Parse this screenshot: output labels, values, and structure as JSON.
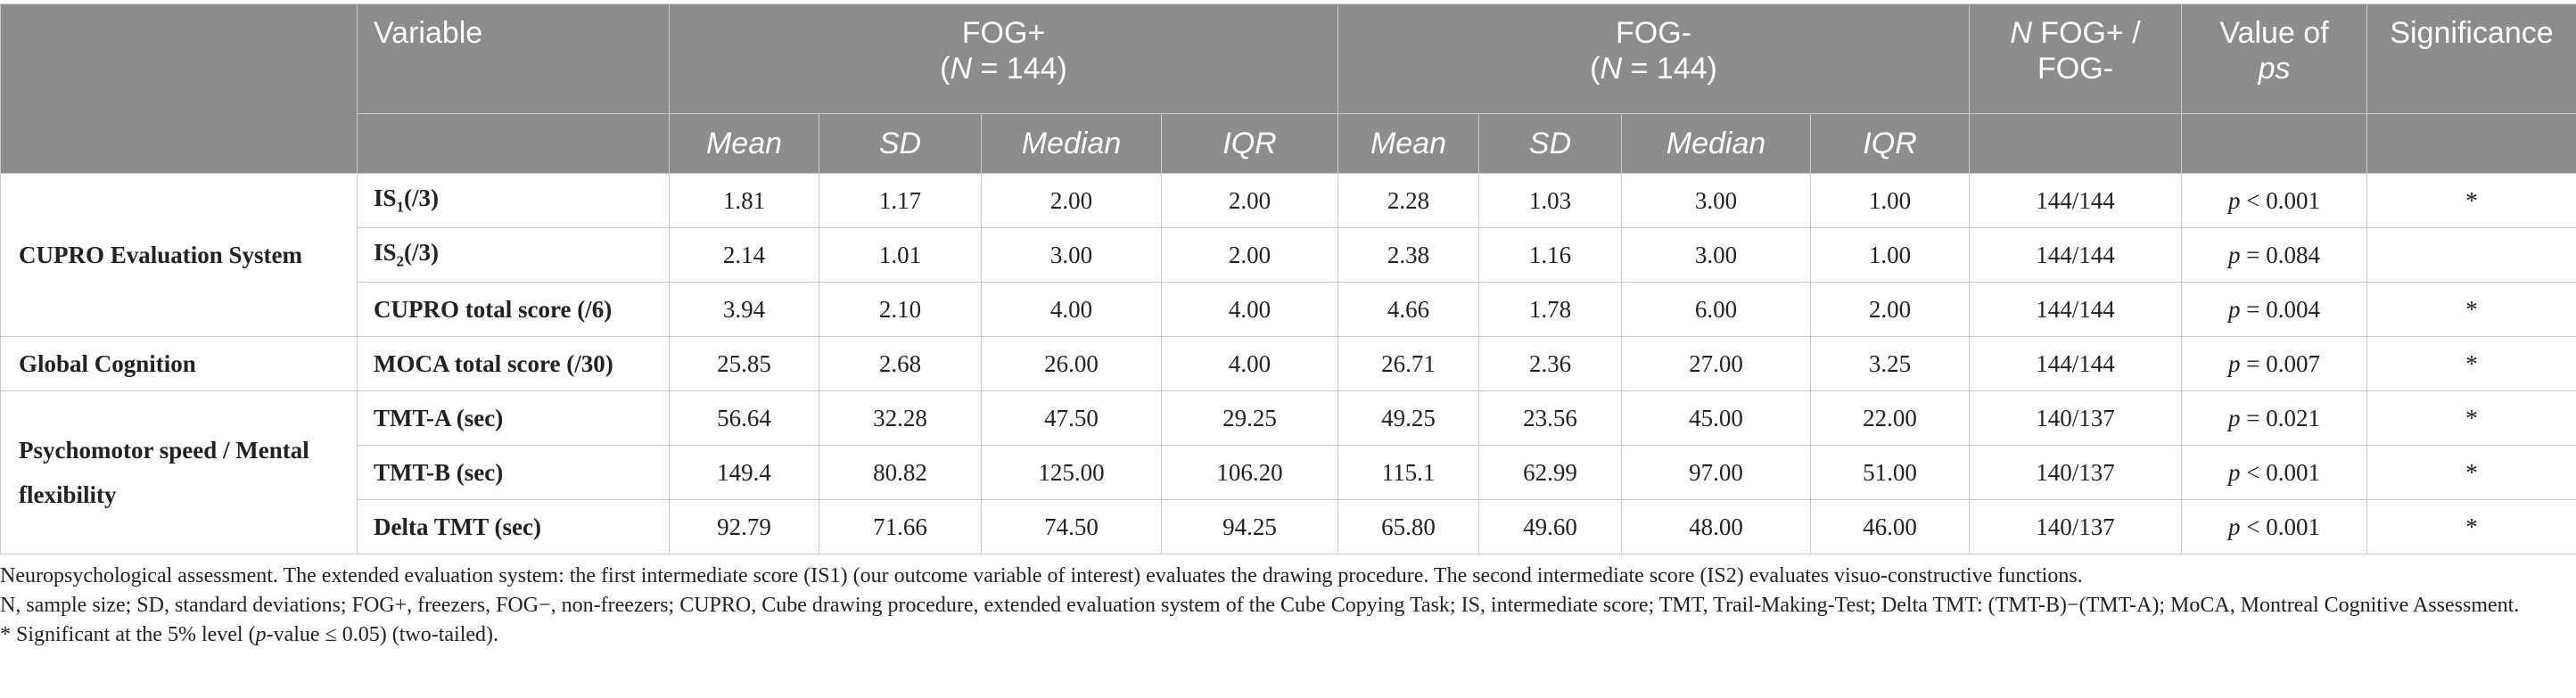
{
  "header": {
    "variable": "Variable",
    "fog_plus": {
      "label": "FOG+",
      "n_prefix": "(",
      "n_label": "N",
      "n_value": " = 144)"
    },
    "fog_minus": {
      "label": "FOG-",
      "n_prefix": "(",
      "n_label": "N",
      "n_value": " = 144)"
    },
    "n_col": {
      "n_label": "N",
      "rest": " FOG+ /",
      "line2": "FOG-"
    },
    "value_col": {
      "line1": "Value of",
      "line2": "ps"
    },
    "significance": "Significance",
    "sub": {
      "mean": "Mean",
      "sd": "SD",
      "median": "Median",
      "iqr": "IQR"
    }
  },
  "groups": {
    "cupro": "CUPRO Evaluation System",
    "global": "Global Cognition",
    "psycho": "Psychomotor speed / Mental flexibility"
  },
  "rows": [
    {
      "var_prefix": "IS",
      "var_sub": "1",
      "var_suffix": "(/3)",
      "v": [
        "1.81",
        "1.17",
        "2.00",
        "2.00",
        "2.28",
        "1.03",
        "3.00",
        "1.00",
        "144/144"
      ],
      "p_label": "p",
      "p_value": " < 0.001",
      "sig": "*"
    },
    {
      "var_prefix": "IS",
      "var_sub": "2",
      "var_suffix": "(/3)",
      "v": [
        "2.14",
        "1.01",
        "3.00",
        "2.00",
        "2.38",
        "1.16",
        "3.00",
        "1.00",
        "144/144"
      ],
      "p_label": "p",
      "p_value": " = 0.084",
      "sig": ""
    },
    {
      "var": "CUPRO total score (/6)",
      "v": [
        "3.94",
        "2.10",
        "4.00",
        "4.00",
        "4.66",
        "1.78",
        "6.00",
        "2.00",
        "144/144"
      ],
      "p_label": "p",
      "p_value": " = 0.004",
      "sig": "*"
    },
    {
      "var": "MOCA total score (/30)",
      "v": [
        "25.85",
        "2.68",
        "26.00",
        "4.00",
        "26.71",
        "2.36",
        "27.00",
        "3.25",
        "144/144"
      ],
      "p_label": "p",
      "p_value": " = 0.007",
      "sig": "*"
    },
    {
      "var": "TMT-A (sec)",
      "v": [
        "56.64",
        "32.28",
        "47.50",
        "29.25",
        "49.25",
        "23.56",
        "45.00",
        "22.00",
        "140/137"
      ],
      "p_label": "p",
      "p_value": " = 0.021",
      "sig": "*"
    },
    {
      "var": "TMT-B (sec)",
      "v": [
        "149.4",
        "80.82",
        "125.00",
        "106.20",
        "115.1",
        "62.99",
        "97.00",
        "51.00",
        "140/137"
      ],
      "p_label": "p",
      "p_value": " < 0.001",
      "sig": "*"
    },
    {
      "var": "Delta TMT (sec)",
      "v": [
        "92.79",
        "71.66",
        "74.50",
        "94.25",
        "65.80",
        "49.60",
        "48.00",
        "46.00",
        "140/137"
      ],
      "p_label": "p",
      "p_value": " < 0.001",
      "sig": "*"
    }
  ],
  "notes": {
    "line1": "Neuropsychological assessment. The extended evaluation system: the first intermediate score (IS1) (our outcome variable of interest) evaluates the drawing procedure. The second intermediate score (IS2) evaluates visuo-constructive functions.",
    "line2": "N, sample size; SD, standard deviations; FOG+, freezers, FOG−, non-freezers; CUPRO, Cube drawing procedure, extended evaluation system of the Cube Copying Task; IS, intermediate score; TMT, Trail-Making-Test; Delta TMT: (TMT-B)−(TMT-A); MoCA, Montreal Cognitive Assessment.",
    "line3_a": "* Significant at the 5% level (",
    "line3_p": "p",
    "line3_b": "-value ≤ 0.05) (two-tailed)."
  }
}
